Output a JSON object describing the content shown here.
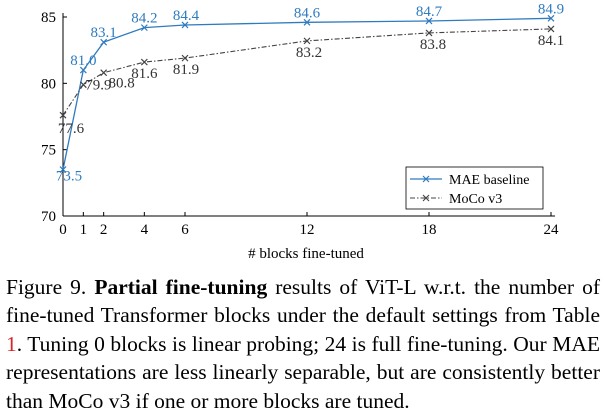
{
  "chart_data": {
    "type": "line",
    "x": [
      0,
      1,
      2,
      4,
      6,
      12,
      18,
      24
    ],
    "xticks": [
      "0",
      "1",
      "2",
      "4",
      "6",
      "12",
      "18",
      "24"
    ],
    "yticks": [
      "70",
      "75",
      "80",
      "85"
    ],
    "xlim": [
      0,
      24
    ],
    "ylim": [
      70,
      85
    ],
    "xlabel": "# blocks fine-tuned",
    "ylabel": "",
    "series": [
      {
        "name": "MAE baseline",
        "values": [
          73.5,
          81.0,
          83.1,
          84.2,
          84.4,
          84.6,
          84.7,
          84.9
        ],
        "labels": [
          "73.5",
          "81.0",
          "83.1",
          "84.2",
          "84.4",
          "84.6",
          "84.7",
          "84.9"
        ],
        "color": "#2f7bbf",
        "style": "solid",
        "marker": "x"
      },
      {
        "name": "MoCo v3",
        "values": [
          77.6,
          79.9,
          80.8,
          81.6,
          81.9,
          83.2,
          83.8,
          84.1
        ],
        "labels": [
          "77.6",
          "79.9",
          "80.8",
          "81.6",
          "81.9",
          "83.2",
          "83.8",
          "84.1"
        ],
        "color": "#444444",
        "style": "dash-dot",
        "marker": "x"
      }
    ],
    "legend_position": "lower-right"
  },
  "caption": {
    "figure_label": "Figure 9.",
    "title_bold": "Partial fine-tuning",
    "text_part1": "results of ViT-L w.r.t. the number of fine-tuned Transformer blocks under the default settings from Table",
    "table_ref": "1",
    "text_part2": ". Tuning 0 blocks is linear probing; 24 is full fine-tuning. Our MAE representations are less linearly separable, but are consistently better than MoCo v3 if one or more blocks are tuned."
  }
}
